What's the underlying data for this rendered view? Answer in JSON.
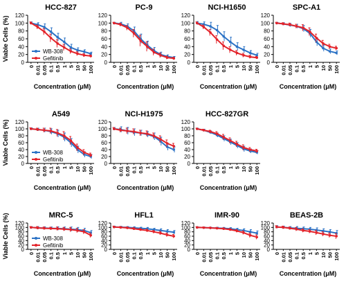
{
  "figure": {
    "ylabel": "Viable Cells (%)",
    "xlabel": "Concentration (μM)",
    "x_tick_labels": [
      "0",
      "0.01",
      "0.05",
      "0.1",
      "0.5",
      "1",
      "5",
      "10",
      "50",
      "100"
    ],
    "y_tick_labels": [
      "0",
      "20",
      "40",
      "60",
      "80",
      "100",
      "120"
    ],
    "legend": [
      "WB-308",
      "Gefitinib"
    ],
    "colors": {
      "WB-308": "#2b72c5",
      "Gefitinib": "#e3232a"
    }
  },
  "chart_data": [
    {
      "type": "line",
      "title": "HCC-827",
      "xlabel": "Concentration (μM)",
      "ylabel": "Viable Cells (%)",
      "categories": [
        "0",
        "0.01",
        "0.05",
        "0.1",
        "0.5",
        "1",
        "5",
        "10",
        "50",
        "100"
      ],
      "ylim": [
        0,
        120
      ],
      "legend_position": "bottom-left",
      "series": [
        {
          "name": "WB-308",
          "values": [
            100,
            96,
            90,
            78,
            64,
            52,
            38,
            31,
            27,
            22
          ],
          "errors": [
            3,
            5,
            8,
            10,
            10,
            10,
            8,
            6,
            5,
            4
          ]
        },
        {
          "name": "Gefitinib",
          "values": [
            100,
            90,
            78,
            62,
            48,
            38,
            28,
            22,
            18,
            16
          ],
          "errors": [
            3,
            5,
            8,
            10,
            10,
            8,
            6,
            5,
            4,
            3
          ]
        }
      ]
    },
    {
      "type": "line",
      "title": "PC-9",
      "xlabel": "Concentration (μM)",
      "ylabel": "",
      "categories": [
        "0",
        "0.01",
        "0.05",
        "0.1",
        "0.5",
        "1",
        "5",
        "10",
        "50",
        "100"
      ],
      "ylim": [
        0,
        120
      ],
      "series": [
        {
          "name": "WB-308",
          "values": [
            100,
            98,
            92,
            80,
            60,
            44,
            30,
            20,
            15,
            12
          ],
          "errors": [
            2,
            4,
            6,
            10,
            12,
            10,
            8,
            6,
            4,
            3
          ]
        },
        {
          "name": "Gefitinib",
          "values": [
            100,
            96,
            88,
            74,
            55,
            40,
            26,
            18,
            12,
            10
          ],
          "errors": [
            2,
            4,
            6,
            10,
            14,
            12,
            8,
            6,
            4,
            3
          ]
        }
      ]
    },
    {
      "type": "line",
      "title": "NCI-H1650",
      "xlabel": "Concentration (μM)",
      "ylabel": "",
      "categories": [
        "0",
        "0.01",
        "0.05",
        "0.1",
        "0.5",
        "1",
        "5",
        "10",
        "50",
        "100"
      ],
      "ylim": [
        0,
        120
      ],
      "series": [
        {
          "name": "WB-308",
          "values": [
            100,
            97,
            92,
            82,
            66,
            52,
            40,
            32,
            24,
            18
          ],
          "errors": [
            4,
            6,
            10,
            12,
            12,
            12,
            10,
            8,
            6,
            5
          ]
        },
        {
          "name": "Gefitinib",
          "values": [
            100,
            90,
            76,
            58,
            42,
            32,
            24,
            18,
            14,
            12
          ],
          "errors": [
            3,
            5,
            8,
            10,
            10,
            8,
            6,
            5,
            4,
            3
          ]
        }
      ]
    },
    {
      "type": "line",
      "title": "SPC-A1",
      "xlabel": "Concentration (μM)",
      "ylabel": "",
      "categories": [
        "0",
        "0.01",
        "0.05",
        "0.1",
        "0.5",
        "1",
        "5",
        "10",
        "50",
        "100"
      ],
      "ylim": [
        0,
        120
      ],
      "series": [
        {
          "name": "WB-308",
          "values": [
            100,
            98,
            95,
            92,
            86,
            74,
            52,
            36,
            28,
            24
          ],
          "errors": [
            2,
            3,
            4,
            5,
            8,
            10,
            10,
            8,
            6,
            5
          ]
        },
        {
          "name": "Gefitinib",
          "values": [
            100,
            98,
            96,
            92,
            88,
            78,
            62,
            48,
            40,
            36
          ],
          "errors": [
            2,
            3,
            4,
            5,
            8,
            10,
            10,
            8,
            6,
            5
          ]
        }
      ]
    },
    {
      "type": "line",
      "title": "A549",
      "xlabel": "Concentration (μM)",
      "ylabel": "Viable Cells (%)",
      "categories": [
        "0",
        "0.01",
        "0.05",
        "0.1",
        "0.5",
        "1",
        "5",
        "10",
        "50",
        "100"
      ],
      "ylim": [
        0,
        120
      ],
      "legend_position": "bottom-left",
      "series": [
        {
          "name": "WB-308",
          "values": [
            100,
            98,
            96,
            92,
            86,
            76,
            60,
            40,
            26,
            20
          ],
          "errors": [
            3,
            4,
            6,
            8,
            10,
            12,
            12,
            10,
            8,
            6
          ]
        },
        {
          "name": "Gefitinib",
          "values": [
            100,
            98,
            96,
            94,
            88,
            80,
            66,
            46,
            32,
            24
          ],
          "errors": [
            3,
            4,
            6,
            8,
            10,
            12,
            12,
            10,
            8,
            6
          ]
        }
      ]
    },
    {
      "type": "line",
      "title": "NCI-H1975",
      "xlabel": "Concentration (μM)",
      "ylabel": "",
      "categories": [
        "0",
        "0.01",
        "0.05",
        "0.1",
        "0.5",
        "1",
        "5",
        "10",
        "50",
        "100"
      ],
      "ylim": [
        0,
        120
      ],
      "series": [
        {
          "name": "WB-308",
          "values": [
            100,
            98,
            94,
            90,
            88,
            84,
            78,
            64,
            48,
            40
          ],
          "errors": [
            4,
            8,
            10,
            10,
            8,
            8,
            10,
            12,
            10,
            8
          ]
        },
        {
          "name": "Gefitinib",
          "values": [
            100,
            96,
            94,
            92,
            88,
            86,
            80,
            70,
            58,
            50
          ],
          "errors": [
            4,
            6,
            8,
            8,
            8,
            8,
            8,
            10,
            10,
            8
          ]
        }
      ]
    },
    {
      "type": "line",
      "title": "HCC-827GR",
      "xlabel": "Concentration (μM)",
      "ylabel": "",
      "categories": [
        "0",
        "0.01",
        "0.05",
        "0.1",
        "0.5",
        "1",
        "5",
        "10",
        "50",
        "100"
      ],
      "ylim": [
        0,
        120
      ],
      "series": [
        {
          "name": "WB-308",
          "values": [
            100,
            96,
            90,
            82,
            72,
            62,
            52,
            42,
            36,
            32
          ],
          "errors": [
            2,
            3,
            4,
            6,
            8,
            8,
            8,
            8,
            6,
            5
          ]
        },
        {
          "name": "Gefitinib",
          "values": [
            100,
            96,
            92,
            86,
            76,
            66,
            56,
            46,
            40,
            36
          ],
          "errors": [
            2,
            3,
            4,
            6,
            8,
            8,
            8,
            8,
            6,
            5
          ]
        }
      ]
    },
    {
      "type": "line",
      "title": "MRC-5",
      "xlabel": "Concentration (μM)",
      "ylabel": "Viable Cells (%)",
      "categories": [
        "0",
        "0.01",
        "0.05",
        "0.1",
        "0.5",
        "1",
        "5",
        "10",
        "50",
        "100"
      ],
      "ylim": [
        0,
        120
      ],
      "legend_position": "bottom-left",
      "series": [
        {
          "name": "WB-308",
          "values": [
            100,
            98,
            97,
            96,
            95,
            94,
            92,
            90,
            86,
            76
          ],
          "errors": [
            4,
            6,
            6,
            6,
            8,
            8,
            10,
            10,
            10,
            10
          ]
        },
        {
          "name": "Gefitinib",
          "values": [
            100,
            98,
            96,
            95,
            94,
            92,
            90,
            86,
            80,
            64
          ],
          "errors": [
            4,
            6,
            6,
            6,
            8,
            8,
            10,
            10,
            10,
            10
          ]
        }
      ]
    },
    {
      "type": "line",
      "title": "HFL1",
      "xlabel": "Concentration (μM)",
      "ylabel": "",
      "categories": [
        "0",
        "0.01",
        "0.05",
        "0.1",
        "0.5",
        "1",
        "5",
        "10",
        "50",
        "100"
      ],
      "ylim": [
        0,
        120
      ],
      "series": [
        {
          "name": "WB-308",
          "values": [
            102,
            101,
            100,
            98,
            96,
            94,
            90,
            86,
            82,
            78
          ],
          "errors": [
            4,
            4,
            4,
            5,
            5,
            6,
            6,
            8,
            8,
            8
          ]
        },
        {
          "name": "Gefitinib",
          "values": [
            102,
            100,
            98,
            94,
            90,
            86,
            80,
            74,
            66,
            60
          ],
          "errors": [
            4,
            4,
            4,
            5,
            5,
            6,
            6,
            8,
            8,
            8
          ]
        }
      ]
    },
    {
      "type": "line",
      "title": "IMR-90",
      "xlabel": "Concentration (μM)",
      "ylabel": "",
      "categories": [
        "0",
        "0.01",
        "0.05",
        "0.1",
        "0.5",
        "1",
        "5",
        "10",
        "50",
        "100"
      ],
      "ylim": [
        0,
        120
      ],
      "series": [
        {
          "name": "WB-308",
          "values": [
            100,
            99,
            98,
            97,
            96,
            94,
            90,
            86,
            80,
            74
          ],
          "errors": [
            3,
            3,
            3,
            4,
            4,
            5,
            6,
            8,
            10,
            10
          ]
        },
        {
          "name": "Gefitinib",
          "values": [
            100,
            99,
            98,
            96,
            94,
            90,
            84,
            76,
            64,
            56
          ],
          "errors": [
            3,
            3,
            3,
            4,
            4,
            5,
            6,
            8,
            10,
            10
          ]
        }
      ]
    },
    {
      "type": "line",
      "title": "BEAS-2B",
      "xlabel": "Concentration (μM)",
      "ylabel": "",
      "categories": [
        "0",
        "0.01",
        "0.05",
        "0.1",
        "0.5",
        "1",
        "5",
        "10",
        "50",
        "100"
      ],
      "ylim": [
        0,
        120
      ],
      "series": [
        {
          "name": "WB-308",
          "values": [
            102,
            100,
            98,
            96,
            94,
            92,
            88,
            84,
            80,
            74
          ],
          "errors": [
            6,
            6,
            6,
            8,
            8,
            8,
            10,
            10,
            10,
            12
          ]
        },
        {
          "name": "Gefitinib",
          "values": [
            102,
            100,
            96,
            92,
            86,
            82,
            76,
            70,
            64,
            60
          ],
          "errors": [
            6,
            6,
            6,
            8,
            8,
            8,
            10,
            10,
            10,
            12
          ]
        }
      ]
    }
  ]
}
